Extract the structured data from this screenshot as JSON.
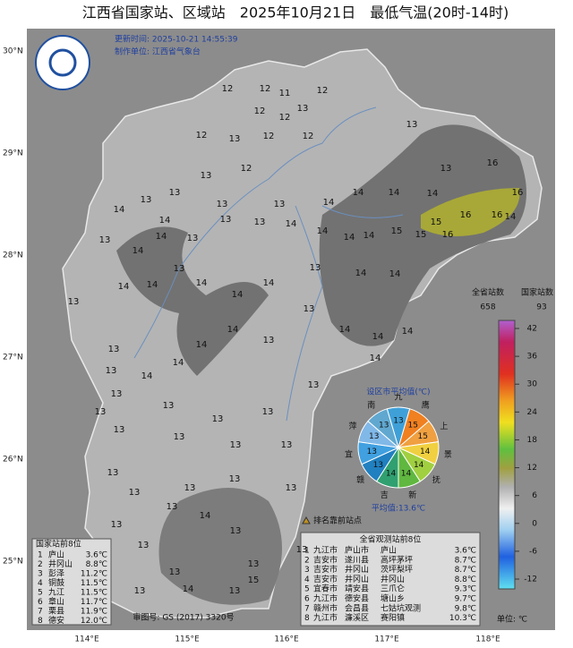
{
  "header": {
    "title": "江西省国家站、区域站　2025年10月21日　最低气温(20时-14时)",
    "update_time": "更新时间: 2025-10-21 14:55:39",
    "producer": "制作单位: 江西省气象台"
  },
  "axes": {
    "lat": [
      "30°N",
      "29°N",
      "28°N",
      "27°N",
      "26°N",
      "25°N"
    ],
    "lon": [
      "114°E",
      "115°E",
      "116°E",
      "117°E",
      "118°E"
    ]
  },
  "map_values": [
    12,
    12,
    11,
    12,
    12,
    13,
    12,
    13,
    12,
    12,
    12,
    13,
    12,
    13,
    13,
    13,
    14,
    14,
    13,
    13,
    14,
    14,
    14,
    14,
    13,
    16,
    16,
    16,
    14,
    16,
    15,
    16,
    15,
    15,
    14,
    14,
    14,
    14,
    13,
    13,
    13,
    14,
    14,
    13,
    13,
    14,
    14,
    13,
    14,
    14,
    14,
    13,
    14,
    14,
    14,
    14,
    14,
    13,
    14,
    14,
    14,
    13,
    13,
    14,
    13,
    13,
    14,
    13,
    13,
    13,
    13,
    13,
    13,
    13,
    13,
    13,
    13,
    13,
    13,
    13,
    13,
    13,
    14,
    13,
    13,
    13,
    13,
    13,
    13,
    13,
    14,
    13,
    15
  ],
  "pie": {
    "title": "设区市平均值(℃)",
    "labels": [
      "九",
      "鹰",
      "上",
      "景",
      "抚",
      "新",
      "吉",
      "赣",
      "宜",
      "萍",
      "南"
    ],
    "values": [
      13,
      15,
      15,
      14,
      14,
      14,
      14,
      13,
      13,
      13,
      13
    ],
    "average": "平均值:13.6℃"
  },
  "colorbar": {
    "province_label": "全省站数",
    "province_count": "658",
    "national_label": "国家站数",
    "national_count": "93",
    "ticks": [
      42,
      36,
      30,
      24,
      18,
      12,
      6,
      0,
      -6,
      -12
    ],
    "unit": "单位: ℃"
  },
  "legend": "排名靠前站点",
  "approval": "审图号: GS (2017) 3320号",
  "national_table": {
    "title": "国家站前8位",
    "rows": [
      [
        "1",
        "庐山",
        "3.6℃"
      ],
      [
        "2",
        "井冈山",
        "8.8℃"
      ],
      [
        "3",
        "彭泽",
        "11.2℃"
      ],
      [
        "4",
        "铜鼓",
        "11.5℃"
      ],
      [
        "5",
        "九江",
        "11.5℃"
      ],
      [
        "6",
        "章山",
        "11.7℃"
      ],
      [
        "7",
        "栗县",
        "11.9℃"
      ],
      [
        "8",
        "德安",
        "12.0℃"
      ]
    ]
  },
  "province_table": {
    "title": "全省观测站前8位",
    "rows": [
      [
        "1",
        "九江市",
        "庐山市",
        "庐山",
        "3.6℃"
      ],
      [
        "2",
        "吉安市",
        "遂川县",
        "高坪茅坪",
        "8.7℃"
      ],
      [
        "3",
        "吉安市",
        "井冈山",
        "茨坪梨坪",
        "8.7℃"
      ],
      [
        "4",
        "吉安市",
        "井冈山",
        "井冈山",
        "8.8℃"
      ],
      [
        "5",
        "宜春市",
        "靖安县",
        "三爪仑",
        "9.3℃"
      ],
      [
        "6",
        "九江市",
        "德安县",
        "塘山乡",
        "9.7℃"
      ],
      [
        "7",
        "赣州市",
        "会昌县",
        "七姑坑观测",
        "9.8℃"
      ],
      [
        "8",
        "九江市",
        "濂溪区",
        "赛阳镇",
        "10.3℃"
      ]
    ]
  }
}
